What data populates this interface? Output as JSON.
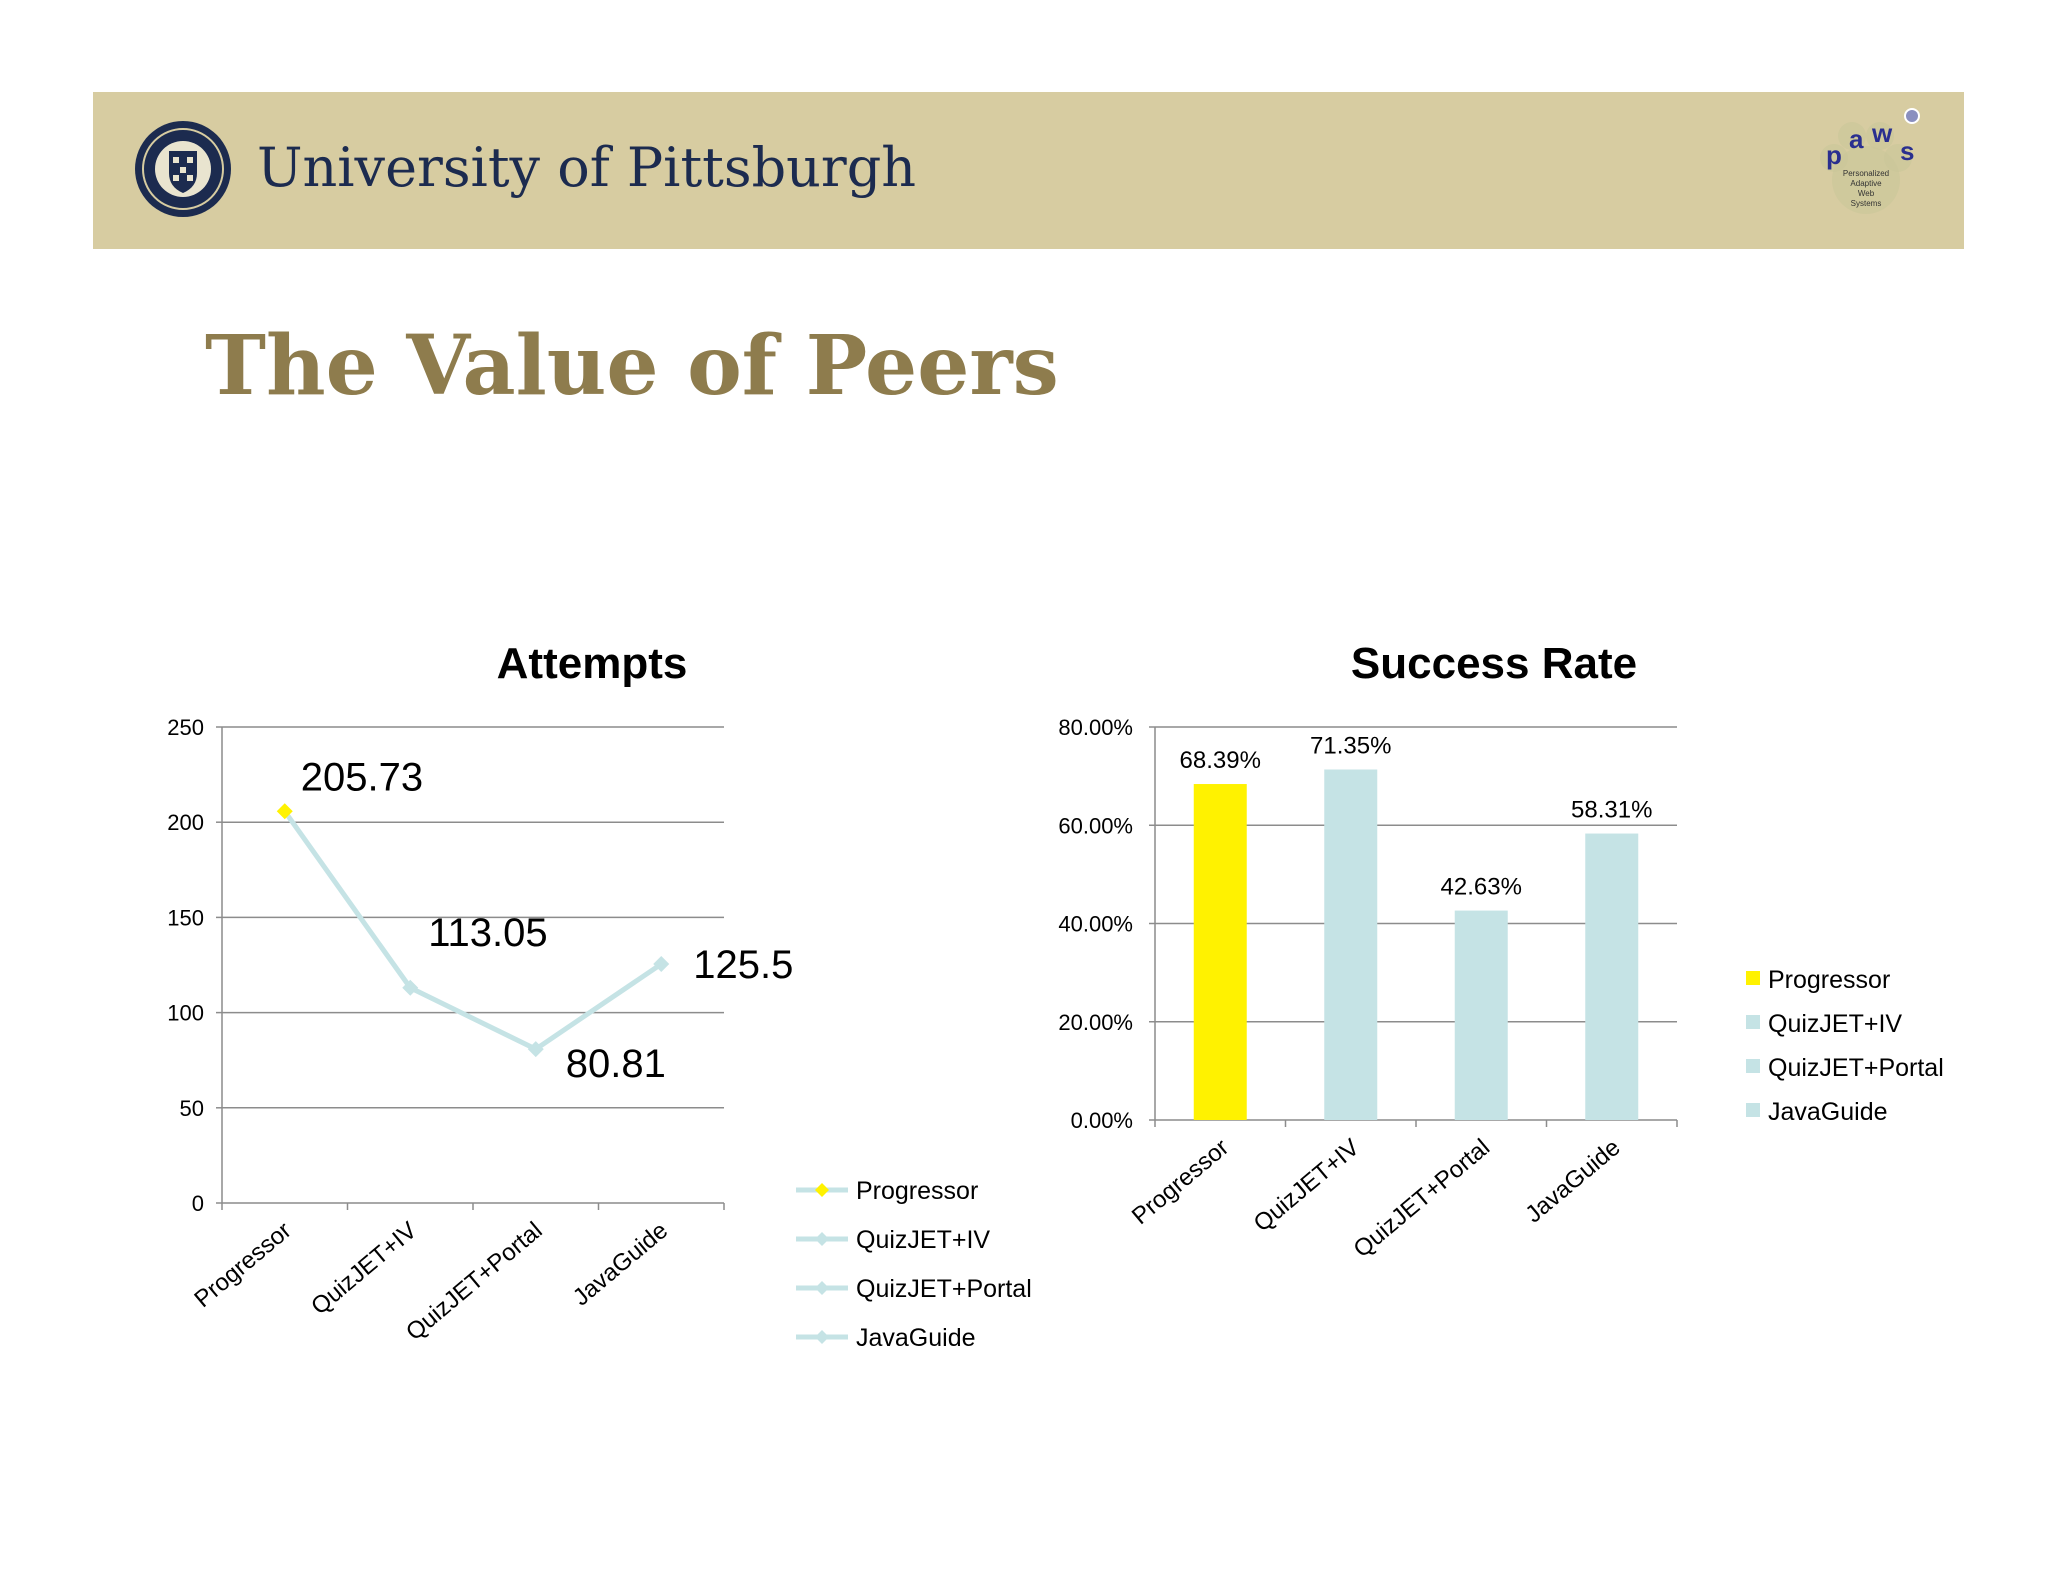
{
  "header": {
    "university_name": "University of Pittsburgh",
    "seal_icon": "university-seal-icon",
    "paws_logo": {
      "letters": "paws",
      "tagline": [
        "Personalized",
        "Adaptive",
        "Web",
        "Systems"
      ]
    },
    "banner_color": "#d7cca1"
  },
  "slide": {
    "title": "The Value of Peers"
  },
  "chart_data": [
    {
      "type": "line",
      "title": "Attempts",
      "categories": [
        "Progressor",
        "QuizJET+IV",
        "QuizJET+Portal",
        "JavaGuide"
      ],
      "values": [
        205.73,
        113.05,
        80.81,
        125.5
      ],
      "data_labels": [
        "205.73",
        "113.05",
        "80.81",
        "125.5"
      ],
      "ylim": [
        0,
        250
      ],
      "yticks": [
        0,
        50,
        100,
        150,
        200,
        250
      ],
      "ytick_labels": [
        "0",
        "50",
        "100",
        "150",
        "200",
        "250"
      ],
      "grid": true,
      "legend_position": "right",
      "legend": [
        "Progressor",
        "QuizJET+IV",
        "QuizJET+Portal",
        "JavaGuide"
      ],
      "colors": {
        "line": "#c5e3e5",
        "highlight": "#fff200",
        "other": "#c5e3e5"
      }
    },
    {
      "type": "bar",
      "title": "Success Rate",
      "categories": [
        "Progressor",
        "QuizJET+IV",
        "QuizJET+Portal",
        "JavaGuide"
      ],
      "values": [
        68.39,
        71.35,
        42.63,
        58.31
      ],
      "data_labels": [
        "68.39%",
        "71.35%",
        "42.63%",
        "58.31%"
      ],
      "ylim": [
        0,
        80
      ],
      "yticks": [
        0,
        20,
        40,
        60,
        80
      ],
      "ytick_labels": [
        "0.00%",
        "20.00%",
        "40.00%",
        "60.00%",
        "80.00%"
      ],
      "grid": true,
      "legend_position": "right",
      "legend": [
        "Progressor",
        "QuizJET+IV",
        "QuizJET+Portal",
        "JavaGuide"
      ],
      "colors": {
        "highlight": "#fff200",
        "other": "#c5e3e5"
      }
    }
  ]
}
